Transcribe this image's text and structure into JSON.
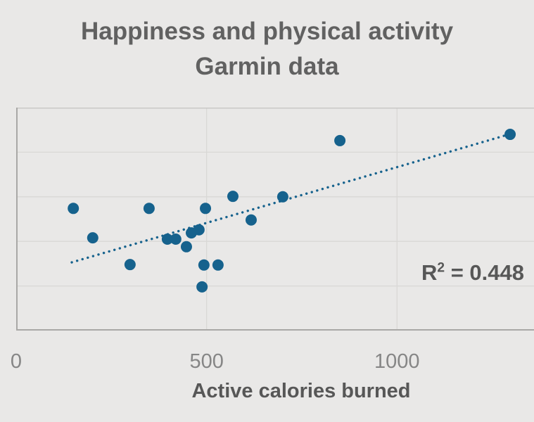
{
  "title": {
    "line1": "Happiness and physical activity",
    "line2": "Garmin data"
  },
  "annotation": {
    "r_base": "R",
    "r_sup": "2",
    "r_rest": " = 0.448"
  },
  "x_axis": {
    "title": "Active calories burned"
  },
  "colors": {
    "background": "#e9e8e7",
    "point": "#16628d",
    "trendline": "#16628d",
    "gridline": "#d9d8d6",
    "axis_border": "#a9a8a6",
    "plot_top_border": "#c7c6c4",
    "title_text": "#616161",
    "tick_text": "#868686",
    "label_text": "#575757"
  },
  "chart_data": {
    "type": "scatter",
    "title": "Happiness and physical activity — Garmin data",
    "xlabel": "Active calories burned",
    "ylabel": "",
    "x_ticks": [
      0,
      500,
      1000
    ],
    "xlim_visible": [
      0,
      1360
    ],
    "y_unit": "unlabeled gridline intervals (0 = bottom axis, 5 = top border)",
    "ylim_units": [
      0,
      5
    ],
    "grid": true,
    "legend": "none",
    "points": [
      {
        "x": 150,
        "y": 2.74
      },
      {
        "x": 201,
        "y": 2.08
      },
      {
        "x": 299,
        "y": 1.48
      },
      {
        "x": 349,
        "y": 2.74
      },
      {
        "x": 397,
        "y": 2.05
      },
      {
        "x": 419,
        "y": 2.05
      },
      {
        "x": 447,
        "y": 1.88
      },
      {
        "x": 460,
        "y": 2.19
      },
      {
        "x": 480,
        "y": 2.26
      },
      {
        "x": 497,
        "y": 2.74
      },
      {
        "x": 493,
        "y": 1.47
      },
      {
        "x": 530,
        "y": 1.47
      },
      {
        "x": 488,
        "y": 0.98
      },
      {
        "x": 569,
        "y": 3.01
      },
      {
        "x": 617,
        "y": 2.48
      },
      {
        "x": 700,
        "y": 3.0
      },
      {
        "x": 850,
        "y": 4.26
      },
      {
        "x": 1297,
        "y": 4.4
      }
    ],
    "trendline": {
      "style": "dotted",
      "x1": 146,
      "y1": 1.53,
      "x2": 1302,
      "y2": 4.42
    },
    "r_squared": 0.448
  }
}
